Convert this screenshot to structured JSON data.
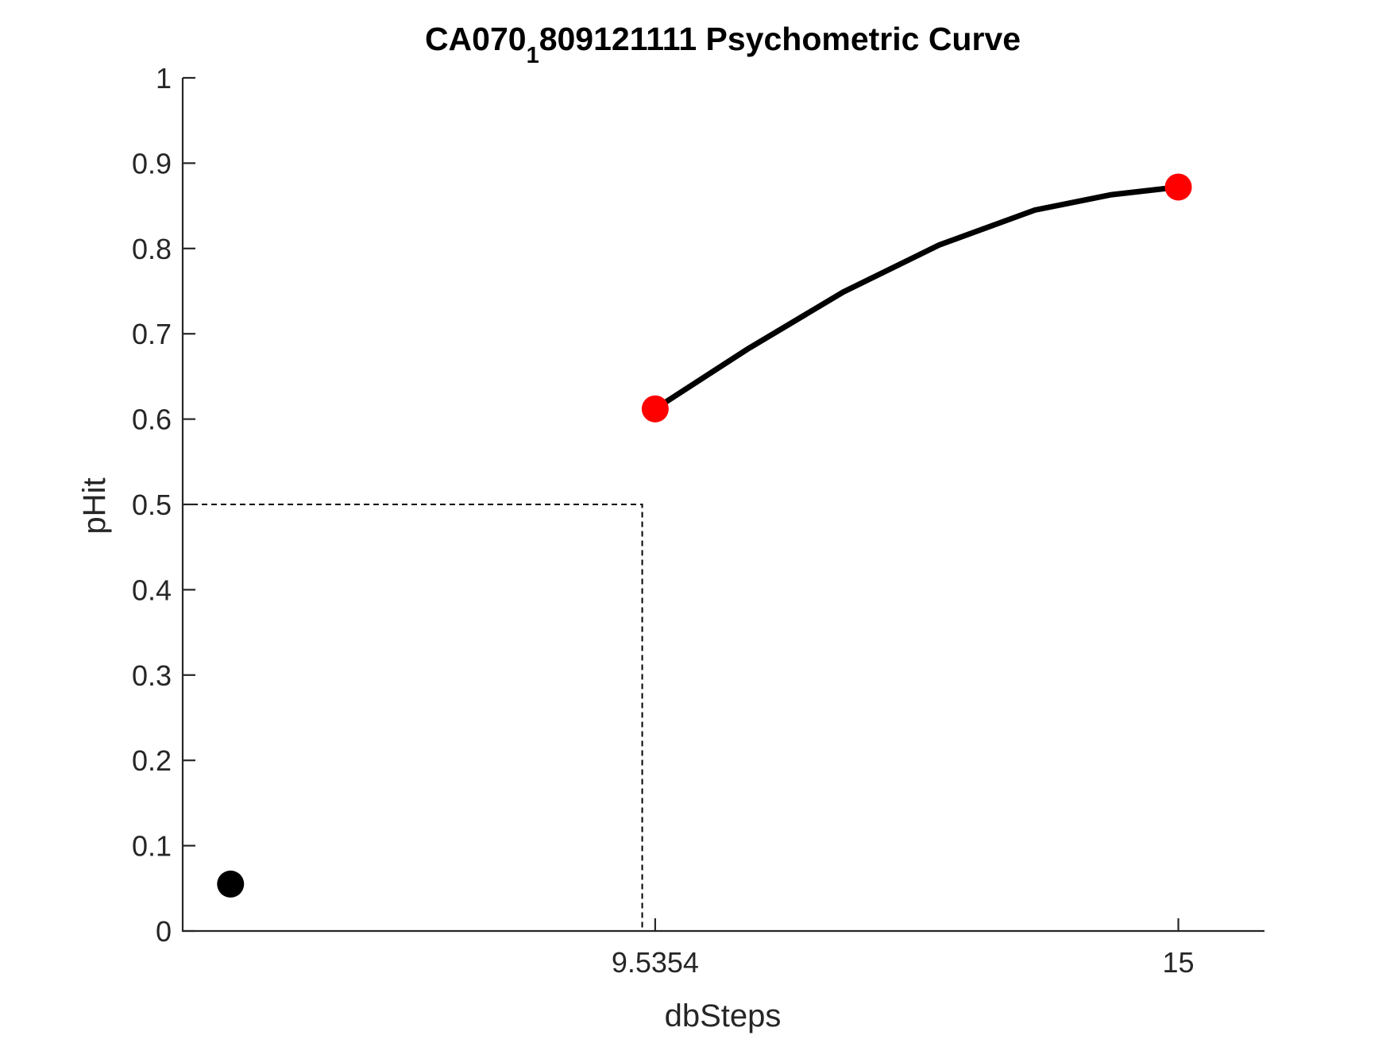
{
  "chart_data": {
    "type": "scatter",
    "title": {
      "main": "CA070",
      "subscript": "1",
      "rest": "809121111 Psychometric Curve"
    },
    "xlabel": "dbSteps",
    "ylabel": "pHit",
    "xlim": [
      4.6,
      15.9
    ],
    "ylim": [
      0,
      1
    ],
    "x_ticks": [
      {
        "value": 9.5354,
        "label": "9.5354"
      },
      {
        "value": 15,
        "label": "15"
      }
    ],
    "y_ticks": [
      {
        "value": 0,
        "label": "0"
      },
      {
        "value": 0.1,
        "label": "0.1"
      },
      {
        "value": 0.2,
        "label": "0.2"
      },
      {
        "value": 0.3,
        "label": "0.3"
      },
      {
        "value": 0.4,
        "label": "0.4"
      },
      {
        "value": 0.5,
        "label": "0.5"
      },
      {
        "value": 0.6,
        "label": "0.6"
      },
      {
        "value": 0.7,
        "label": "0.7"
      },
      {
        "value": 0.8,
        "label": "0.8"
      },
      {
        "value": 0.9,
        "label": "0.9"
      },
      {
        "value": 1,
        "label": "1"
      }
    ],
    "grid": false,
    "series": [
      {
        "kind": "points",
        "color": "#ff0000",
        "points": [
          {
            "x": 9.5354,
            "y": 0.612
          },
          {
            "x": 15,
            "y": 0.872
          }
        ]
      },
      {
        "kind": "points",
        "color": "#000000",
        "points": [
          {
            "x": 5.1,
            "y": 0.055
          }
        ]
      },
      {
        "kind": "fit-curve",
        "color": "#000000",
        "points": [
          {
            "x": 9.5354,
            "y": 0.612
          },
          {
            "x": 10.5,
            "y": 0.682
          },
          {
            "x": 11.5,
            "y": 0.749
          },
          {
            "x": 12.5,
            "y": 0.804
          },
          {
            "x": 13.5,
            "y": 0.845
          },
          {
            "x": 14.3,
            "y": 0.863
          },
          {
            "x": 15,
            "y": 0.872
          }
        ]
      }
    ],
    "threshold": {
      "x": 9.4,
      "y": 0.5
    }
  }
}
